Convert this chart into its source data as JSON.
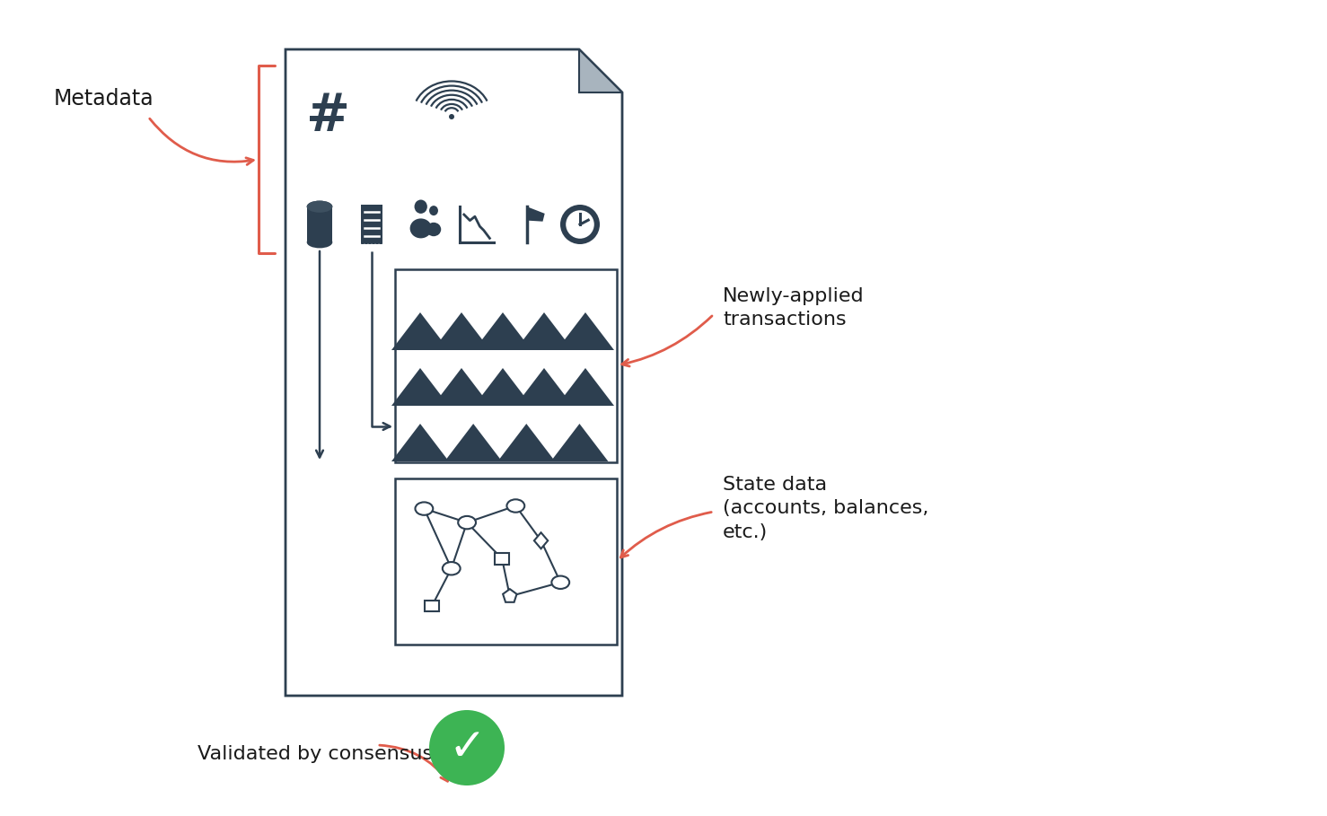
{
  "bg_color": "#ffffff",
  "doc_border_color": "#2d3f50",
  "icon_color": "#2d3f50",
  "arrow_color": "#e05c4b",
  "green_color": "#3db454",
  "text_color": "#1a1a1a",
  "labels": {
    "metadata": "Metadata",
    "transactions": "Newly-applied\ntransactions",
    "state": "State data\n(accounts, balances,\netc.)",
    "validated": "Validated by consensus"
  }
}
